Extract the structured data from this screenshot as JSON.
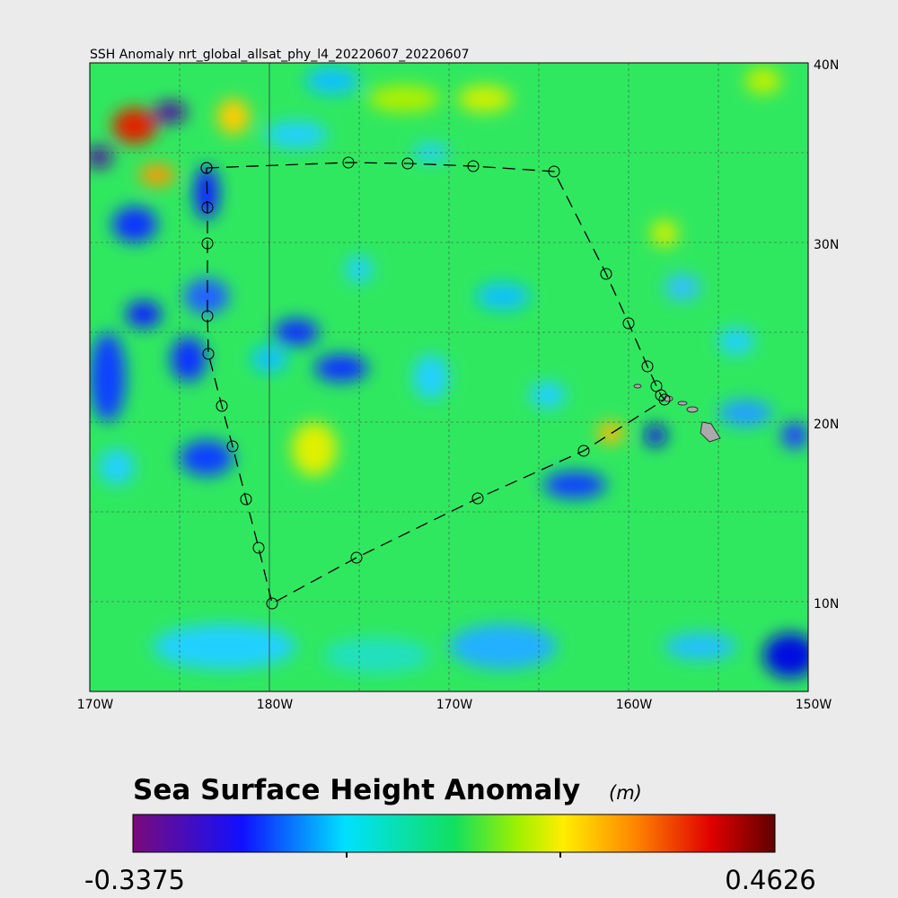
{
  "title": "SSH Anomaly nrt_global_allsat_phy_l4_20220607_20220607",
  "lat_labels": [
    "40N",
    "30N",
    "20N",
    "10N"
  ],
  "lon_labels": [
    "170W",
    "180W",
    "170W",
    "160W",
    "150W"
  ],
  "colorbar": {
    "title": "Sea Surface Height Anomaly",
    "units": "(m)",
    "min_label": "-0.3375",
    "max_label": "0.4626"
  }
}
